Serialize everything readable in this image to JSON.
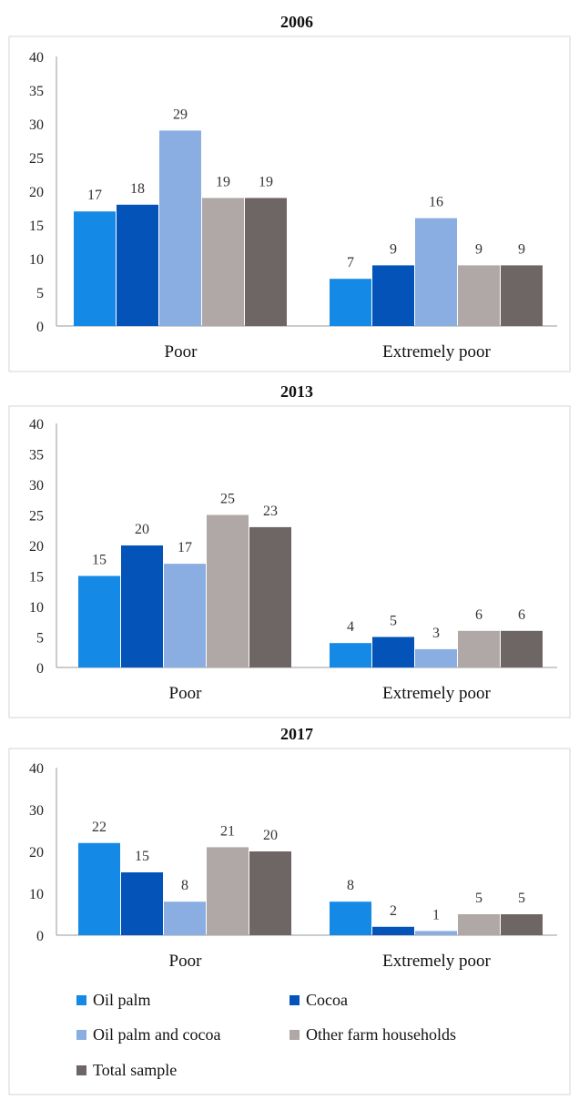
{
  "palette": [
    "#1589e6",
    "#0353b8",
    "#8aaee2",
    "#afa8a6",
    "#6e6664"
  ],
  "legend": [
    {
      "label": "Oil palm",
      "color": "#1589e6"
    },
    {
      "label": "Cocoa",
      "color": "#0353b8"
    },
    {
      "label": "Oil palm and cocoa",
      "color": "#8aaee2"
    },
    {
      "label": "Other farm households",
      "color": "#afa8a6"
    },
    {
      "label": "Total sample",
      "color": "#6e6664"
    }
  ],
  "chart_data": [
    {
      "type": "bar",
      "title": "2006",
      "categories": [
        "Poor",
        "Extremely poor"
      ],
      "ylim": [
        0,
        40
      ],
      "yticks": [
        0,
        5,
        10,
        15,
        20,
        25,
        30,
        35,
        40
      ],
      "grid": false,
      "series": [
        {
          "name": "Oil palm",
          "values": [
            17,
            7
          ]
        },
        {
          "name": "Cocoa",
          "values": [
            18,
            9
          ]
        },
        {
          "name": "Oil palm and cocoa",
          "values": [
            29,
            16
          ]
        },
        {
          "name": "Other farm households",
          "values": [
            19,
            9
          ]
        },
        {
          "name": "Total sample",
          "values": [
            19,
            9
          ]
        }
      ]
    },
    {
      "type": "bar",
      "title": "2013",
      "categories": [
        "Poor",
        "Extremely poor"
      ],
      "ylim": [
        0,
        40
      ],
      "yticks": [
        0,
        5,
        10,
        15,
        20,
        25,
        30,
        35,
        40
      ],
      "grid": false,
      "series": [
        {
          "name": "Oil palm",
          "values": [
            15,
            4
          ]
        },
        {
          "name": "Cocoa",
          "values": [
            20,
            5
          ]
        },
        {
          "name": "Oil palm and cocoa",
          "values": [
            17,
            3
          ]
        },
        {
          "name": "Other farm households",
          "values": [
            25,
            6
          ]
        },
        {
          "name": "Total sample",
          "values": [
            23,
            6
          ]
        }
      ]
    },
    {
      "type": "bar",
      "title": "2017",
      "categories": [
        "Poor",
        "Extremely poor"
      ],
      "ylim": [
        0,
        40
      ],
      "yticks": [
        0,
        10,
        20,
        30,
        40
      ],
      "grid": false,
      "legend_position": "bottom",
      "series": [
        {
          "name": "Oil palm",
          "values": [
            22,
            8
          ]
        },
        {
          "name": "Cocoa",
          "values": [
            15,
            2
          ]
        },
        {
          "name": "Oil palm and cocoa",
          "values": [
            8,
            1
          ]
        },
        {
          "name": "Other farm households",
          "values": [
            21,
            5
          ]
        },
        {
          "name": "Total sample",
          "values": [
            20,
            5
          ]
        }
      ]
    }
  ]
}
